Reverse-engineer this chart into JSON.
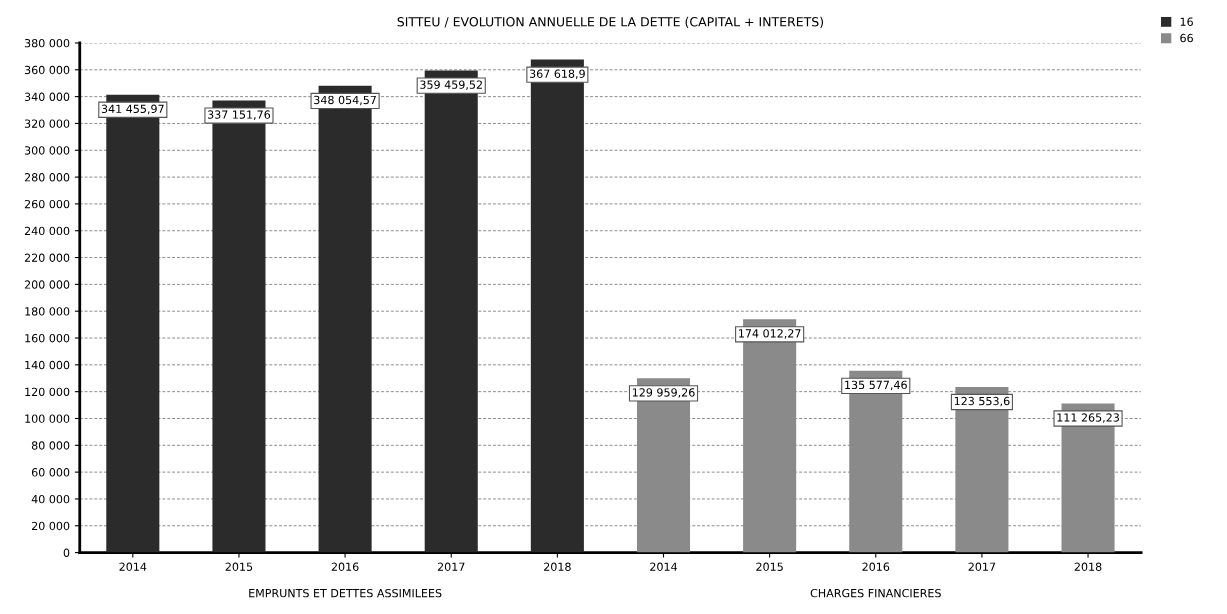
{
  "chart_data": {
    "type": "bar",
    "title": "SITTEU / EVOLUTION ANNUELLE DE LA DETTE (CAPITAL + INTERETS)",
    "categories": [
      "2014",
      "2015",
      "2016",
      "2017",
      "2018",
      "2014",
      "2015",
      "2016",
      "2017",
      "2018"
    ],
    "series": [
      {
        "name": "16",
        "color": "#2b2b2b",
        "values": [
          341455.97,
          337151.76,
          348054.57,
          359459.52,
          367618.9,
          null,
          null,
          null,
          null,
          null
        ],
        "value_labels": [
          "341 455,97",
          "337 151,76",
          "348 054,57",
          "359 459,52",
          "367 618,9",
          null,
          null,
          null,
          null,
          null
        ]
      },
      {
        "name": "66",
        "color": "#8a8a8a",
        "values": [
          null,
          null,
          null,
          null,
          null,
          129959.26,
          174012.27,
          135577.46,
          123553.6,
          111265.23
        ],
        "value_labels": [
          null,
          null,
          null,
          null,
          null,
          "129 959,26",
          "174 012,27",
          "135 577,46",
          "123 553,6",
          "111 265,23"
        ]
      }
    ],
    "ylim": [
      0,
      380000
    ],
    "yticks": [
      0,
      {
        "value": 20000,
        "label": "20 000"
      },
      {
        "value": 40000,
        "label": "40 000"
      },
      {
        "value": 60000,
        "label": "60 000"
      },
      {
        "value": 80000,
        "label": "80 000"
      },
      {
        "value": 100000,
        "label": "100 000"
      },
      {
        "value": 120000,
        "label": "120 000"
      },
      {
        "value": 140000,
        "label": "140 000"
      },
      {
        "value": 160000,
        "label": "160 000"
      },
      {
        "value": 180000,
        "label": "180 000"
      },
      {
        "value": 200000,
        "label": "200 000"
      },
      {
        "value": 220000,
        "label": "220 000"
      },
      {
        "value": 240000,
        "label": "240 000"
      },
      {
        "value": 260000,
        "label": "260 000"
      },
      {
        "value": 280000,
        "label": "280 000"
      },
      {
        "value": 300000,
        "label": "300 000"
      },
      {
        "value": 320000,
        "label": "320 000"
      },
      {
        "value": 340000,
        "label": "340 000"
      },
      {
        "value": 360000,
        "label": "360 000"
      },
      {
        "value": 380000,
        "label": "380 000"
      }
    ],
    "annotations": [
      "EMPRUNTS ET DETTES ASSIMILEES",
      "CHARGES FINANCIERES"
    ],
    "grid": "y",
    "legend": "top right"
  }
}
